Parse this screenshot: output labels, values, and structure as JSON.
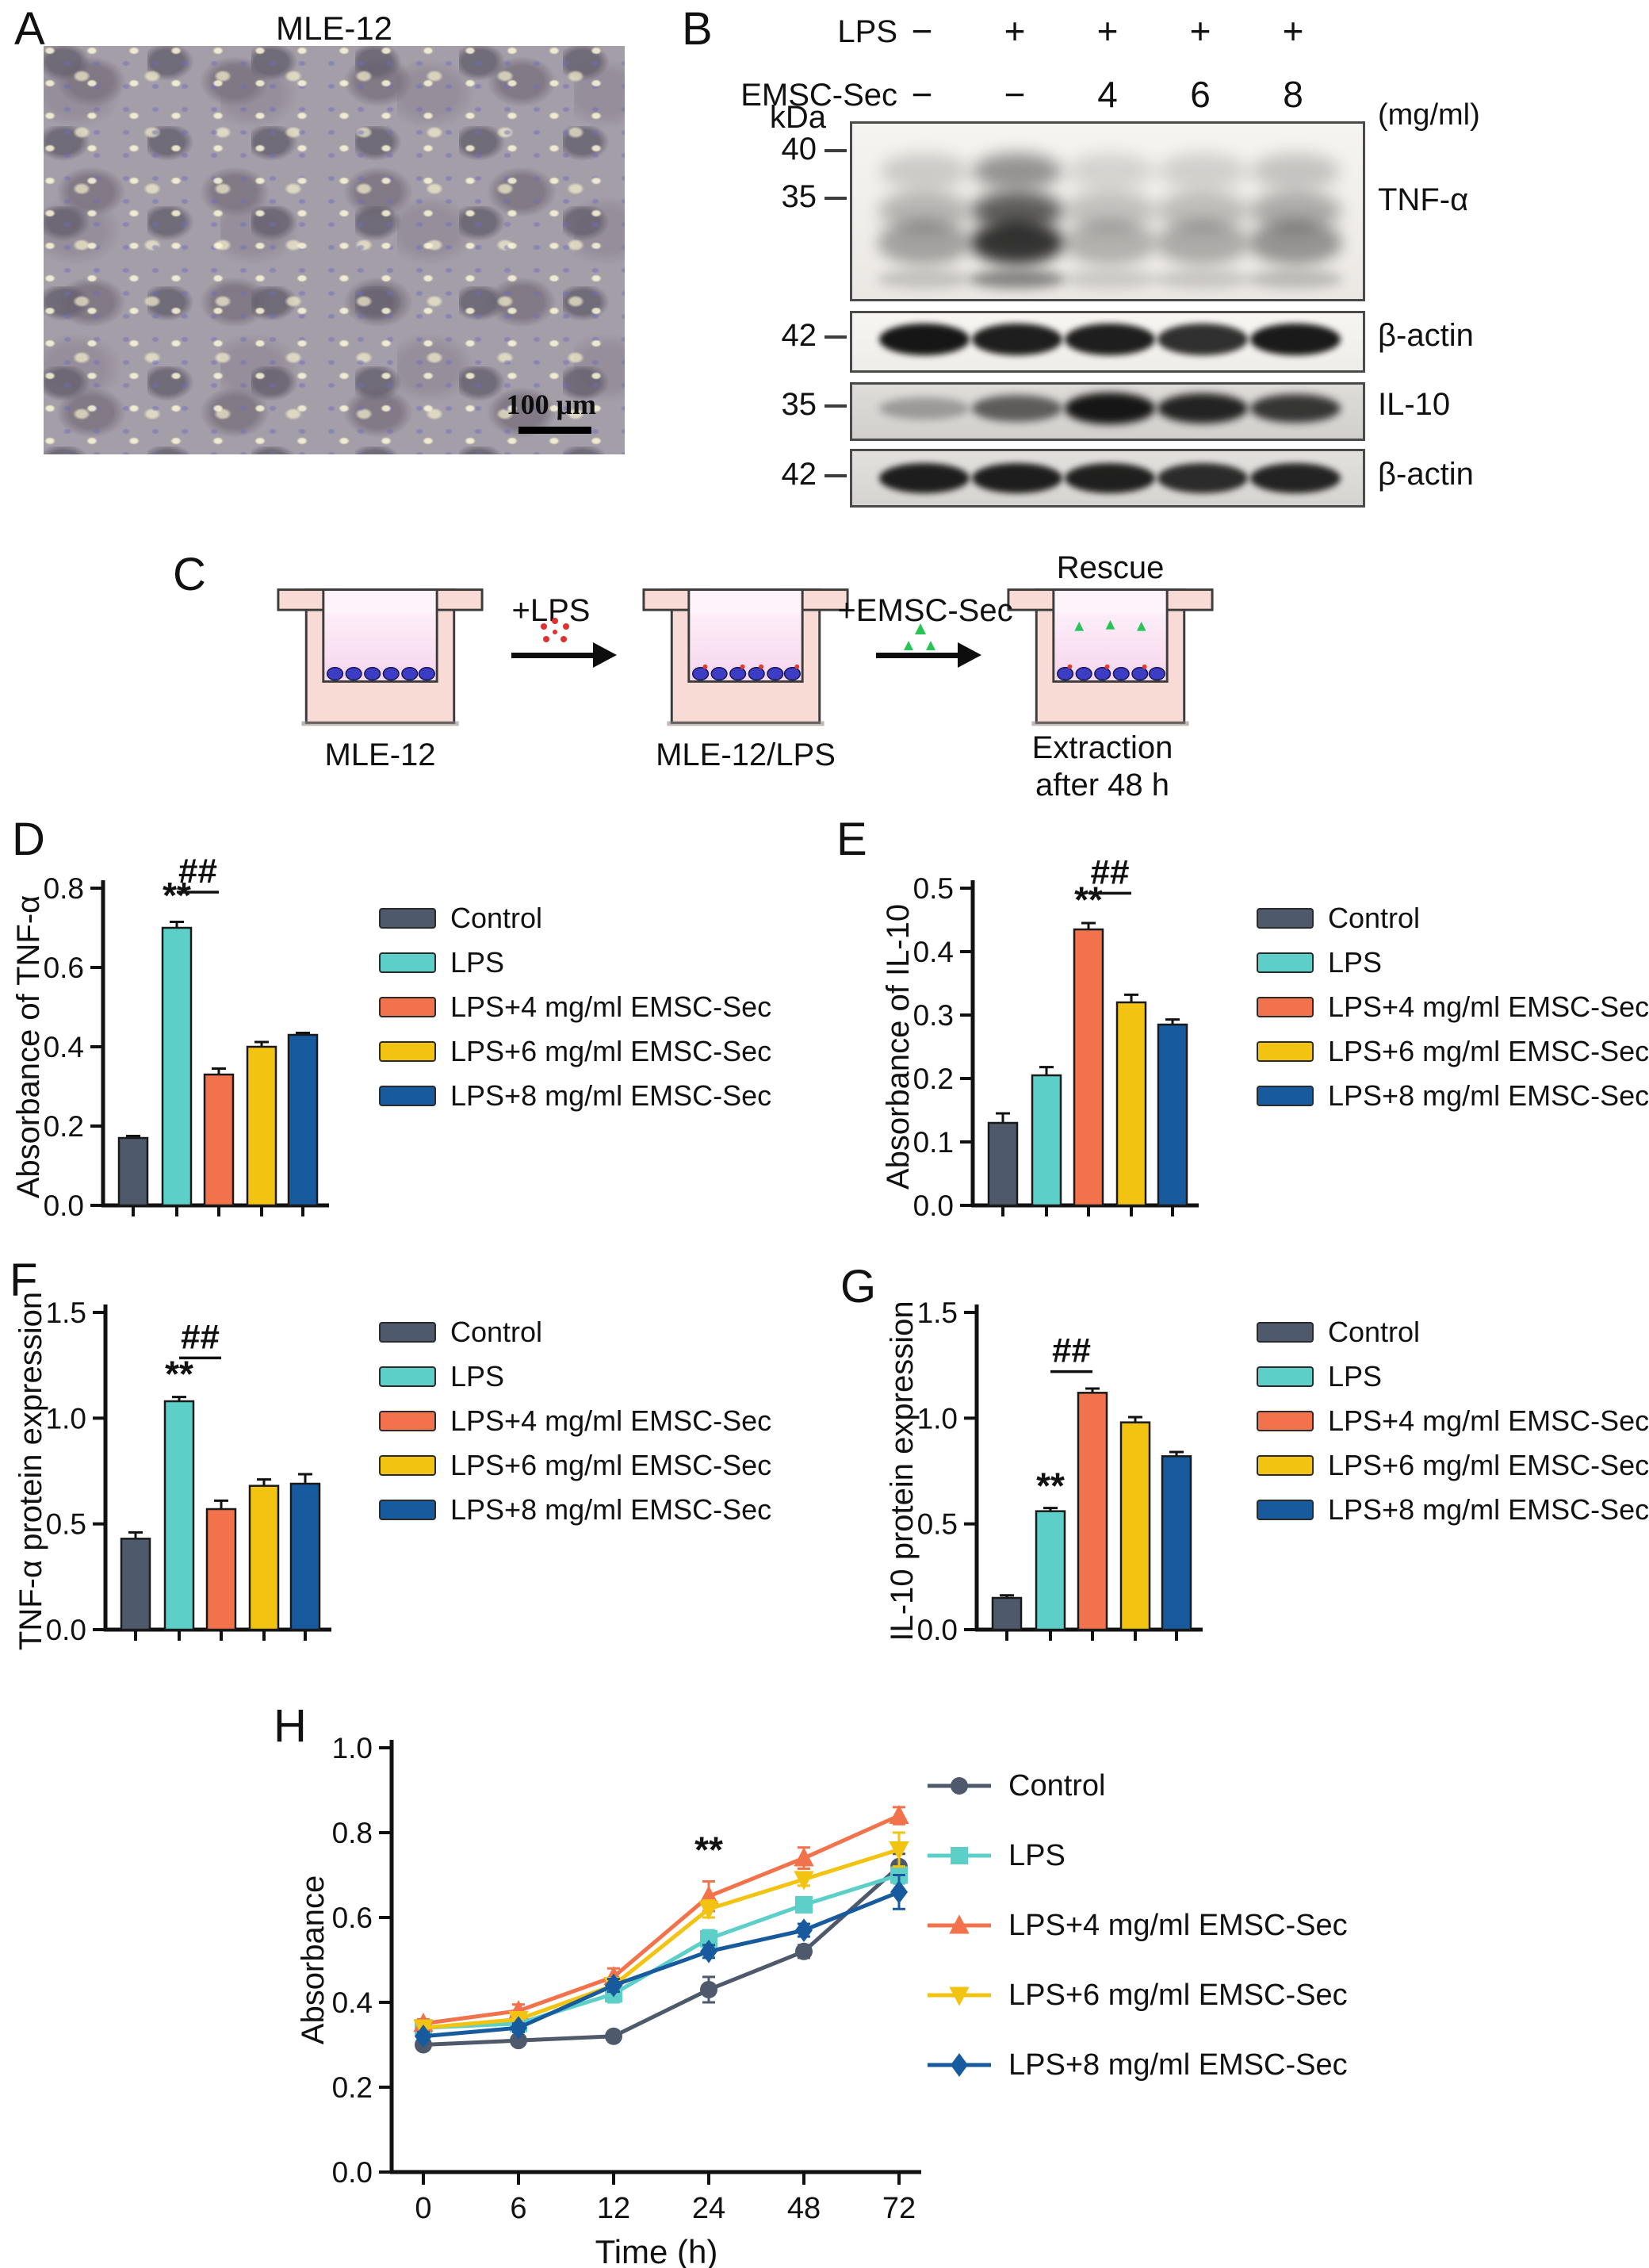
{
  "panel_a": {
    "label": "A",
    "title": "MLE-12",
    "scale_bar_label": "100 μm"
  },
  "panel_b": {
    "label": "B",
    "rows": [
      {
        "name": "LPS",
        "values": [
          "−",
          "+",
          "+",
          "+",
          "+"
        ]
      },
      {
        "name": "EMSC-Sec",
        "values": [
          "−",
          "−",
          "4",
          "6",
          "8"
        ]
      }
    ],
    "unit": "(mg/ml)",
    "kda": "kDa",
    "blots": [
      {
        "target": "TNF-α",
        "markers": [
          "40",
          "35"
        ],
        "style": "smear",
        "lanes": [
          0.38,
          0.95,
          0.3,
          0.33,
          0.45
        ]
      },
      {
        "target": "β-actin",
        "markers": [
          "42"
        ],
        "style": "band",
        "lanes": [
          0.97,
          0.93,
          0.93,
          0.85,
          0.95
        ]
      },
      {
        "target": "IL-10",
        "markers": [
          "35"
        ],
        "style": "band",
        "lanes": [
          0.28,
          0.6,
          0.97,
          0.9,
          0.8
        ]
      },
      {
        "target": "β-actin",
        "markers": [
          "42"
        ],
        "style": "band",
        "lanes": [
          0.93,
          0.93,
          0.92,
          0.86,
          0.9
        ]
      }
    ]
  },
  "panel_c": {
    "label": "C",
    "arrow1_label": "+LPS",
    "arrow2_label": "+EMSC-Sec",
    "well1_caption": "MLE-12",
    "well2_caption": "MLE-12/LPS",
    "rescue_caption": "Rescue",
    "extraction_line1": "Extraction",
    "extraction_line2": "after 48 h"
  },
  "groups": [
    {
      "name": "Control",
      "color": "#4E5A6C"
    },
    {
      "name": "LPS",
      "color": "#5CCFC9"
    },
    {
      "name": "LPS+4 mg/ml EMSC-Sec",
      "color": "#F2724C"
    },
    {
      "name": "LPS+6 mg/ml EMSC-Sec",
      "color": "#F2C411"
    },
    {
      "name": "LPS+8 mg/ml EMSC-Sec",
      "color": "#175A9E"
    }
  ],
  "chart_data": [
    {
      "panel": "D",
      "type": "bar",
      "title": "",
      "ylabel": "Absorbance of TNF-α",
      "xlabel": "",
      "ylim": [
        0,
        0.8
      ],
      "yticks": [
        "0.0",
        "0.2",
        "0.4",
        "0.6",
        "0.8"
      ],
      "categories": [
        "Control",
        "LPS",
        "LPS+4 mg/ml EMSC-Sec",
        "LPS+6 mg/ml EMSC-Sec",
        "LPS+8 mg/ml EMSC-Sec"
      ],
      "values": [
        0.17,
        0.7,
        0.33,
        0.4,
        0.43
      ],
      "errors": [
        0.005,
        0.015,
        0.015,
        0.012,
        0.005
      ],
      "legend_position": "right",
      "grid": false,
      "sig": {
        "star": "**",
        "star_index": 1,
        "star_y": 0.75,
        "hash": "##",
        "hash_x1": 1,
        "hash_x2": 2,
        "hash_y": 0.79
      }
    },
    {
      "panel": "E",
      "type": "bar",
      "title": "",
      "ylabel": "Absorbance of IL-10",
      "xlabel": "",
      "ylim": [
        0,
        0.5
      ],
      "yticks": [
        "0.0",
        "0.1",
        "0.2",
        "0.3",
        "0.4",
        "0.5"
      ],
      "categories": [
        "Control",
        "LPS",
        "LPS+4 mg/ml EMSC-Sec",
        "LPS+6 mg/ml EMSC-Sec",
        "LPS+8 mg/ml EMSC-Sec"
      ],
      "values": [
        0.13,
        0.205,
        0.435,
        0.32,
        0.285
      ],
      "errors": [
        0.015,
        0.013,
        0.01,
        0.012,
        0.008
      ],
      "legend_position": "right",
      "grid": false,
      "sig": {
        "star": "**",
        "star_index": 2,
        "star_y": 0.462,
        "hash": "##",
        "hash_x1": 2,
        "hash_x2": 3,
        "hash_y": 0.492
      }
    },
    {
      "panel": "F",
      "type": "bar",
      "title": "",
      "ylabel": "TNF-α protein expression",
      "xlabel": "",
      "ylim": [
        0,
        1.5
      ],
      "yticks": [
        "0.0",
        "0.5",
        "1.0",
        "1.5"
      ],
      "categories": [
        "Control",
        "LPS",
        "LPS+4 mg/ml EMSC-Sec",
        "LPS+6 mg/ml EMSC-Sec",
        "LPS+8 mg/ml EMSC-Sec"
      ],
      "values": [
        0.43,
        1.08,
        0.57,
        0.68,
        0.69
      ],
      "errors": [
        0.03,
        0.02,
        0.04,
        0.03,
        0.045
      ],
      "legend_position": "right",
      "grid": false,
      "sig": {
        "star": "**",
        "star_index": 1,
        "star_y": 1.15,
        "hash": "##",
        "hash_x1": 1,
        "hash_x2": 2,
        "hash_y": 1.285
      }
    },
    {
      "panel": "G",
      "type": "bar",
      "title": "",
      "ylabel": "IL-10 protein expression",
      "xlabel": "",
      "ylim": [
        0,
        1.5
      ],
      "yticks": [
        "0.0",
        "0.5",
        "1.0",
        "1.5"
      ],
      "categories": [
        "Control",
        "LPS",
        "LPS+4 mg/ml EMSC-Sec",
        "LPS+6 mg/ml EMSC-Sec",
        "LPS+8 mg/ml EMSC-Sec"
      ],
      "values": [
        0.15,
        0.56,
        1.12,
        0.98,
        0.82
      ],
      "errors": [
        0.012,
        0.015,
        0.02,
        0.025,
        0.02
      ],
      "legend_position": "right",
      "grid": false,
      "sig": {
        "star": "**",
        "star_index": 1,
        "star_y": 0.62,
        "hash": "##",
        "hash_x1": 1,
        "hash_x2": 2,
        "hash_y": 1.22
      }
    },
    {
      "panel": "H",
      "type": "line",
      "title": "",
      "ylabel": "Absorbance",
      "xlabel": "Time (h)",
      "ylim": [
        0,
        1.0
      ],
      "yticks": [
        "0.0",
        "0.2",
        "0.4",
        "0.6",
        "0.8",
        "1.0"
      ],
      "x": [
        "0",
        "6",
        "12",
        "24",
        "48",
        "72"
      ],
      "legend_position": "right",
      "grid": false,
      "series": [
        {
          "name": "Control",
          "marker": "circle",
          "values": [
            0.3,
            0.31,
            0.32,
            0.43,
            0.52,
            0.72
          ],
          "errors": [
            0.01,
            0.01,
            0.01,
            0.03,
            0.015,
            0.03
          ]
        },
        {
          "name": "LPS",
          "marker": "square",
          "values": [
            0.34,
            0.35,
            0.42,
            0.55,
            0.63,
            0.7
          ],
          "errors": [
            0.01,
            0.01,
            0.02,
            0.02,
            0.015,
            0.02
          ]
        },
        {
          "name": "LPS+4 mg/ml EMSC-Sec",
          "marker": "triangle-up",
          "values": [
            0.35,
            0.38,
            0.46,
            0.65,
            0.74,
            0.84
          ],
          "errors": [
            0.01,
            0.015,
            0.02,
            0.035,
            0.025,
            0.02
          ]
        },
        {
          "name": "LPS+6 mg/ml EMSC-Sec",
          "marker": "triangle-down",
          "values": [
            0.34,
            0.36,
            0.44,
            0.62,
            0.69,
            0.76
          ],
          "errors": [
            0.01,
            0.01,
            0.015,
            0.02,
            0.015,
            0.04
          ]
        },
        {
          "name": "LPS+8 mg/ml EMSC-Sec",
          "marker": "diamond",
          "values": [
            0.32,
            0.34,
            0.44,
            0.52,
            0.57,
            0.66
          ],
          "errors": [
            0.01,
            0.01,
            0.015,
            0.015,
            0.015,
            0.04
          ]
        }
      ],
      "sig": {
        "star": "**",
        "star_index": 3,
        "star_y": 0.73
      }
    }
  ]
}
